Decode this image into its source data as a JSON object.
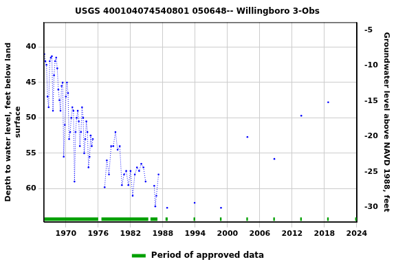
{
  "chart_data": {
    "type": "line",
    "title": "USGS 400104074540801 050648-- Willingboro 3-Obs",
    "xlabel": null,
    "ylabel": "Depth to water level, feet below land surface",
    "y2label": "Groundwater level above NAVD 1988, feet",
    "x": [
      1966.0,
      1966.2,
      1966.4,
      1966.6,
      1966.8,
      1967.0,
      1967.2,
      1967.4,
      1967.6,
      1967.8,
      1968.0,
      1968.2,
      1968.4,
      1968.6,
      1968.8,
      1969.0,
      1969.2,
      1969.4,
      1969.6,
      1969.8,
      1970.0,
      1970.2,
      1970.4,
      1970.6,
      1970.8,
      1971.0,
      1971.2,
      1971.4,
      1971.6,
      1971.8,
      1972.0,
      1972.2,
      1972.4,
      1972.6,
      1972.8,
      1973.0,
      1973.2,
      1973.4,
      1973.6,
      1973.8,
      1974.0,
      1974.2,
      1974.4,
      1974.6,
      1974.8,
      1975.0,
      1976.0,
      1977.2,
      1977.6,
      1978.0,
      1978.4,
      1978.8,
      1979.2,
      1979.6,
      1980.0,
      1980.4,
      1980.8,
      1981.2,
      1981.6,
      1982.0,
      1982.4,
      1982.8,
      1983.2,
      1983.6,
      1984.0,
      1984.4,
      1984.8,
      1985.6,
      1986.4,
      1986.6,
      1986.8,
      1987.2,
      1988.0,
      1988.8,
      1991.0,
      1993.9,
      1996.0,
      1998.8,
      2001.0,
      2003.7,
      2006.0,
      2008.7,
      2011.0,
      2013.7,
      2016.0,
      2018.7
    ],
    "series": [
      {
        "name": "Depth to water level",
        "color": "#0000ff",
        "marker": "circle",
        "line_style": "dotted",
        "values": [
          41.0,
          42.0,
          42.5,
          47.0,
          48.5,
          42.0,
          41.5,
          41.3,
          49.0,
          44.0,
          42.0,
          41.5,
          43.0,
          46.0,
          47.5,
          49.0,
          45.5,
          45.0,
          55.5,
          51.0,
          47.0,
          45.0,
          46.5,
          53.0,
          52.0,
          50.0,
          48.5,
          49.0,
          59.0,
          52.0,
          50.0,
          49.0,
          50.5,
          54.0,
          52.0,
          48.5,
          50.0,
          55.0,
          53.0,
          50.5,
          52.0,
          57.0,
          55.5,
          52.5,
          54.0,
          53.0,
          null,
          59.8,
          56.0,
          58.0,
          54.0,
          54.0,
          52.0,
          54.5,
          54.0,
          59.5,
          58.0,
          57.5,
          59.5,
          57.5,
          61.0,
          58.0,
          57.0,
          57.5,
          56.5,
          57.0,
          59.0,
          null,
          59.6,
          62.5,
          61.0,
          58.0,
          null,
          62.7,
          null,
          62.0,
          null,
          62.7,
          null,
          52.7,
          null,
          55.8,
          null,
          49.7,
          null,
          47.8
        ]
      }
    ],
    "xlim": [
      1965.9,
      2024
    ],
    "xticks": [
      1970,
      1976,
      1982,
      1988,
      1994,
      2000,
      2006,
      2012,
      2018,
      2024
    ],
    "ylim": [
      64.7,
      36.5
    ],
    "yticks": [
      40,
      45,
      50,
      55,
      60
    ],
    "y2lim": [
      -32.1,
      -3.9
    ],
    "y2ticks": [
      -30,
      -25,
      -20,
      -15,
      -10,
      -5
    ],
    "grid": true,
    "legend": "bottom",
    "approved_label": "Period of approved data",
    "approved_color": "#00a000",
    "approved_periods": [
      [
        1966.0,
        1976.0
      ],
      [
        1976.6,
        1985.3
      ],
      [
        1985.7,
        1987.0
      ],
      [
        1988.5,
        1988.9
      ],
      [
        1993.7,
        1994.0
      ],
      [
        1998.6,
        1998.9
      ],
      [
        2003.5,
        2003.8
      ],
      [
        2008.5,
        2008.8
      ],
      [
        2013.5,
        2013.8
      ],
      [
        2018.5,
        2018.8
      ],
      [
        2023.7,
        2024.0
      ]
    ]
  }
}
